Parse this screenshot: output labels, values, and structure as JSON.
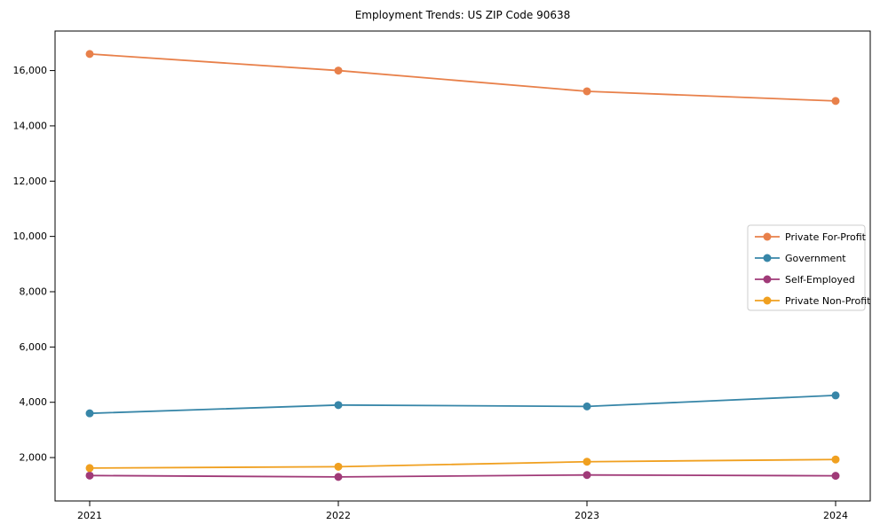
{
  "chart_data": {
    "type": "line",
    "title": "Employment Trends: US ZIP Code 90638",
    "xlabel": "",
    "ylabel": "",
    "categories": [
      "2021",
      "2022",
      "2023",
      "2024"
    ],
    "series": [
      {
        "name": "Private For-Profit",
        "color": "#e8804a",
        "values": [
          16600,
          16000,
          15250,
          14900
        ]
      },
      {
        "name": "Government",
        "color": "#3786a8",
        "values": [
          3600,
          3900,
          3850,
          4250
        ]
      },
      {
        "name": "Self-Employed",
        "color": "#a03a78",
        "values": [
          1350,
          1300,
          1370,
          1340
        ]
      },
      {
        "name": "Private Non-Profit",
        "color": "#f0a020",
        "values": [
          1620,
          1670,
          1850,
          1930
        ]
      }
    ],
    "yticks": [
      2000,
      4000,
      6000,
      8000,
      10000,
      12000,
      14000,
      16000
    ],
    "ytick_labels": [
      "2,000",
      "4,000",
      "6,000",
      "8,000",
      "10,000",
      "12,000",
      "14,000",
      "16,000"
    ],
    "ylim": [
      430,
      17430
    ],
    "grid": false,
    "legend_position": "center-right",
    "axis_color": "#000000",
    "legend_border_color": "#cccccc",
    "legend_background": "#ffffff"
  }
}
